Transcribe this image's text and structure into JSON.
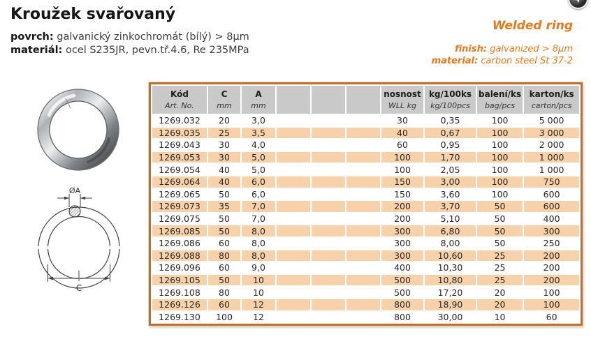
{
  "header": {
    "title": "Kroužek svařovaný",
    "spec_lines": [
      {
        "label": "povrch:",
        "value": "galvanický zinkochromát (bílý) > 8µm"
      },
      {
        "label": "materiál:",
        "value": "ocel S235JR, pevn.tř.4.6, Re 235MPa"
      }
    ],
    "english": {
      "title": "Welded ring",
      "lines": [
        {
          "label": "finish:",
          "value": "galvanized > 8µm"
        },
        {
          "label": "material:",
          "value": "carbon steel St 37-2"
        }
      ]
    }
  },
  "icons": {
    "top_right": "circular-arrow-button",
    "glyph": "➤"
  },
  "drawing": {
    "dim_a_label": "ØA",
    "dim_c_label": "C"
  },
  "colors": {
    "accent_orange_text": "#e5791c",
    "table_border_orange": "#bd6e2d",
    "row_peach": "#f7d1a9",
    "header_gray": "#c9c9c9"
  },
  "table": {
    "headers": [
      {
        "line1": "Kód",
        "line2": "Art. No."
      },
      {
        "line1": "C",
        "line2": "mm"
      },
      {
        "line1": "A",
        "line2": "mm"
      },
      {
        "line1": "",
        "line2": ""
      },
      {
        "line1": "",
        "line2": ""
      },
      {
        "line1": "",
        "line2": ""
      },
      {
        "line1": "nosnost",
        "line2": "WLL kg"
      },
      {
        "line1": "kg/100ks",
        "line2": "kg/100pcs"
      },
      {
        "line1": "balení/ks",
        "line2": "bag/pcs"
      },
      {
        "line1": "karton/ks",
        "line2": "carton/pcs"
      }
    ],
    "rows": [
      [
        "1269.032",
        "20",
        "3,0",
        "",
        "",
        "",
        "30",
        "0,35",
        "100",
        "5 000"
      ],
      [
        "1269.035",
        "25",
        "3,5",
        "",
        "",
        "",
        "40",
        "0,67",
        "100",
        "3 000"
      ],
      [
        "1269.043",
        "30",
        "4,0",
        "",
        "",
        "",
        "60",
        "0,95",
        "100",
        "2 000"
      ],
      [
        "1269.053",
        "30",
        "5,0",
        "",
        "",
        "",
        "100",
        "1,70",
        "100",
        "1 000"
      ],
      [
        "1269.054",
        "40",
        "5,0",
        "",
        "",
        "",
        "100",
        "2,05",
        "100",
        "1 000"
      ],
      [
        "1269.064",
        "40",
        "6,0",
        "",
        "",
        "",
        "150",
        "3,00",
        "100",
        "750"
      ],
      [
        "1269.065",
        "50",
        "6,0",
        "",
        "",
        "",
        "150",
        "3,60",
        "100",
        "600"
      ],
      [
        "1269.073",
        "35",
        "7,0",
        "",
        "",
        "",
        "200",
        "3,70",
        "50",
        "600"
      ],
      [
        "1269.075",
        "50",
        "7,0",
        "",
        "",
        "",
        "200",
        "5,10",
        "50",
        "400"
      ],
      [
        "1269.085",
        "50",
        "8,0",
        "",
        "",
        "",
        "300",
        "6,80",
        "50",
        "300"
      ],
      [
        "1269.086",
        "60",
        "8,0",
        "",
        "",
        "",
        "300",
        "8,00",
        "50",
        "250"
      ],
      [
        "1269.088",
        "80",
        "8,0",
        "",
        "",
        "",
        "300",
        "10,60",
        "25",
        "200"
      ],
      [
        "1269.096",
        "60",
        "9,0",
        "",
        "",
        "",
        "400",
        "10,30",
        "25",
        "200"
      ],
      [
        "1269.105",
        "50",
        "10",
        "",
        "",
        "",
        "500",
        "10,80",
        "25",
        "200"
      ],
      [
        "1269.108",
        "80",
        "10",
        "",
        "",
        "",
        "500",
        "17,20",
        "20",
        "100"
      ],
      [
        "1269.126",
        "60",
        "12",
        "",
        "",
        "",
        "800",
        "18,90",
        "20",
        "100"
      ],
      [
        "1269.130",
        "100",
        "12",
        "",
        "",
        "",
        "800",
        "30,00",
        "10",
        "60"
      ]
    ]
  }
}
